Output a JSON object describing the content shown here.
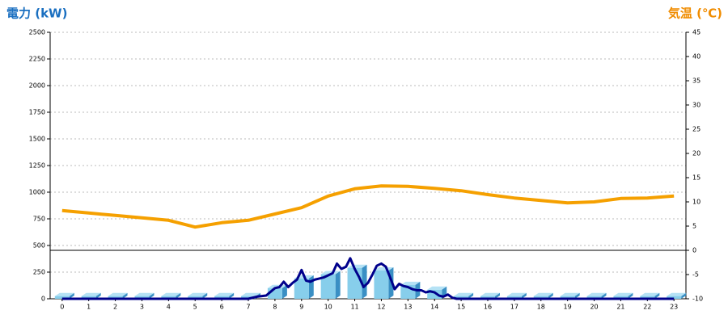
{
  "chart_data": {
    "type": "combo",
    "title": "電力 (kW)",
    "y2_title": "気温 (℃)",
    "xlim": [
      -0.45,
      23.45
    ],
    "xticks": [
      0,
      1,
      2,
      3,
      4,
      5,
      6,
      7,
      8,
      9,
      10,
      11,
      12,
      13,
      14,
      15,
      16,
      17,
      18,
      19,
      20,
      21,
      22,
      23
    ],
    "ylim": [
      0,
      2500
    ],
    "yticks": [
      0,
      250,
      500,
      750,
      1000,
      1250,
      1500,
      1750,
      2000,
      2250,
      2500
    ],
    "y2lim": [
      -10,
      45
    ],
    "y2ticks": [
      -10,
      -5,
      0,
      5,
      10,
      15,
      20,
      25,
      30,
      35,
      40,
      45
    ],
    "grid": true,
    "series": [
      {
        "type": "bar",
        "color": "#87ceeb",
        "x": [
          0,
          1,
          2,
          3,
          4,
          5,
          6,
          7,
          8,
          9,
          10,
          11,
          12,
          13,
          14,
          15,
          16,
          17,
          18,
          19,
          20,
          21,
          22,
          23
        ],
        "values": [
          25,
          25,
          25,
          25,
          25,
          25,
          25,
          25,
          100,
          190,
          230,
          290,
          265,
          130,
          85,
          25,
          25,
          25,
          25,
          25,
          25,
          25,
          25,
          25
        ]
      },
      {
        "type": "line",
        "color": "#00008b",
        "x": [
          0,
          7,
          7.33,
          7.67,
          8,
          8.17,
          8.33,
          8.5,
          8.67,
          8.83,
          9,
          9.17,
          9.33,
          9.5,
          9.67,
          9.83,
          10,
          10.17,
          10.33,
          10.5,
          10.67,
          10.83,
          11,
          11.17,
          11.33,
          11.5,
          11.67,
          11.83,
          12,
          12.17,
          12.33,
          12.5,
          12.67,
          12.83,
          13,
          13.17,
          13.33,
          13.5,
          13.67,
          13.83,
          14,
          14.17,
          14.33,
          14.5,
          14.67,
          14.83,
          15,
          23
        ],
        "values": [
          0,
          0,
          20,
          30,
          100,
          110,
          160,
          110,
          150,
          180,
          270,
          170,
          160,
          180,
          190,
          200,
          220,
          240,
          330,
          280,
          300,
          380,
          280,
          200,
          110,
          150,
          230,
          310,
          330,
          300,
          200,
          90,
          140,
          120,
          110,
          90,
          80,
          80,
          60,
          70,
          60,
          30,
          20,
          40,
          10,
          0,
          0,
          0
        ]
      },
      {
        "type": "line",
        "axis": "y2",
        "color": "#f5a000",
        "x": [
          0,
          1,
          2,
          3,
          4,
          5,
          6,
          7,
          8,
          9,
          10,
          11,
          12,
          13,
          14,
          15,
          16,
          17,
          18,
          19,
          20,
          21,
          22,
          23
        ],
        "values": [
          8.2,
          7.7,
          7.2,
          6.7,
          6.2,
          4.8,
          5.7,
          6.2,
          7.5,
          8.8,
          11.2,
          12.7,
          13.3,
          13.2,
          12.8,
          12.3,
          11.5,
          10.8,
          10.3,
          9.8,
          10,
          10.7,
          10.8,
          11.2
        ]
      }
    ]
  }
}
